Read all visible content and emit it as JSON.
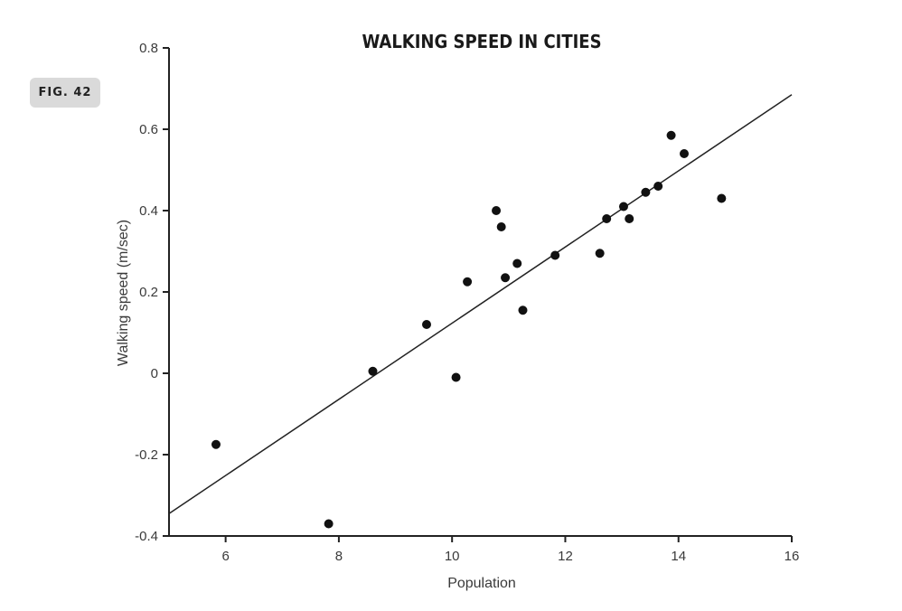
{
  "figure_label": "FIG. 42",
  "colors": {
    "points": "#111111",
    "axes": "#222222",
    "trendline": "#222222"
  },
  "chart_data": {
    "type": "scatter",
    "title": "WALKING SPEED IN CITIES",
    "xlabel": "Population",
    "ylabel": "Walking speed (m/sec)",
    "xlim": [
      5,
      16
    ],
    "ylim": [
      -0.4,
      0.8
    ],
    "xticks": [
      6,
      8,
      10,
      12,
      14,
      16
    ],
    "xtick_labels": [
      "6",
      "8",
      "10",
      "12",
      "14",
      "16"
    ],
    "yticks": [
      -0.4,
      -0.2,
      0,
      0.2,
      0.4,
      0.6,
      0.8
    ],
    "ytick_labels": [
      "-0.4",
      "-0.2",
      "0",
      "0.2",
      "0.4",
      "0.6",
      "0.8"
    ],
    "grid": false,
    "series": [
      {
        "points": [
          {
            "x": 5.83,
            "y": -0.175
          },
          {
            "x": 7.82,
            "y": -0.37
          },
          {
            "x": 8.6,
            "y": 0.005
          },
          {
            "x": 9.55,
            "y": 0.12
          },
          {
            "x": 10.07,
            "y": -0.01
          },
          {
            "x": 10.27,
            "y": 0.225
          },
          {
            "x": 10.78,
            "y": 0.4
          },
          {
            "x": 10.87,
            "y": 0.36
          },
          {
            "x": 10.94,
            "y": 0.235
          },
          {
            "x": 11.15,
            "y": 0.27
          },
          {
            "x": 11.25,
            "y": 0.155
          },
          {
            "x": 11.82,
            "y": 0.29
          },
          {
            "x": 12.61,
            "y": 0.295
          },
          {
            "x": 12.73,
            "y": 0.38
          },
          {
            "x": 13.03,
            "y": 0.41
          },
          {
            "x": 13.13,
            "y": 0.38
          },
          {
            "x": 13.42,
            "y": 0.445
          },
          {
            "x": 13.64,
            "y": 0.46
          },
          {
            "x": 13.87,
            "y": 0.585
          },
          {
            "x": 14.1,
            "y": 0.54
          },
          {
            "x": 14.76,
            "y": 0.43
          }
        ]
      }
    ],
    "trendline": {
      "from": {
        "x": 5,
        "y": -0.345
      },
      "to": {
        "x": 16,
        "y": 0.685
      }
    }
  }
}
